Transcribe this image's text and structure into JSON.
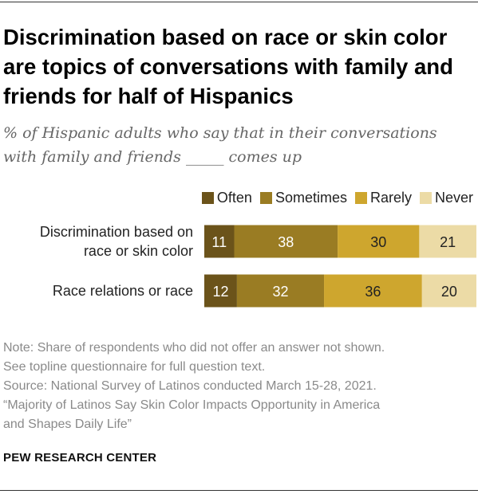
{
  "title": "Discrimination based on race or skin color are topics of conversations with family and friends for half of Hispanics",
  "subtitle_line1": "% of Hispanic adults who say that in their conversations",
  "subtitle_line2": "with family and friends _____ comes up",
  "legend": [
    {
      "label": "Often",
      "color": "#6b531a"
    },
    {
      "label": "Sometimes",
      "color": "#9a7c23"
    },
    {
      "label": "Rarely",
      "color": "#cea62e"
    },
    {
      "label": "Never",
      "color": "#ecdba6"
    }
  ],
  "chart_data": {
    "type": "bar",
    "orientation": "horizontal",
    "stacked": true,
    "categories": [
      [
        "Discrimination based on",
        "race or skin color"
      ],
      [
        "Race relations or race"
      ]
    ],
    "series": [
      {
        "name": "Often",
        "values": [
          11,
          12
        ],
        "color": "#6b531a"
      },
      {
        "name": "Sometimes",
        "values": [
          38,
          32
        ],
        "color": "#9a7c23"
      },
      {
        "name": "Rarely",
        "values": [
          30,
          36
        ],
        "color": "#cea62e"
      },
      {
        "name": "Never",
        "values": [
          21,
          20
        ],
        "color": "#ecdba6"
      }
    ],
    "xlim": [
      0,
      100
    ]
  },
  "notes": [
    "Note: Share of respondents who did not offer an answer not shown.",
    "See topline questionnaire for full question text.",
    "Source: National Survey of Latinos conducted March 15-28, 2021.",
    "“Majority of Latinos Say Skin Color Impacts Opportunity in America",
    "and Shapes Daily Life”"
  ],
  "credit": "PEW RESEARCH CENTER"
}
